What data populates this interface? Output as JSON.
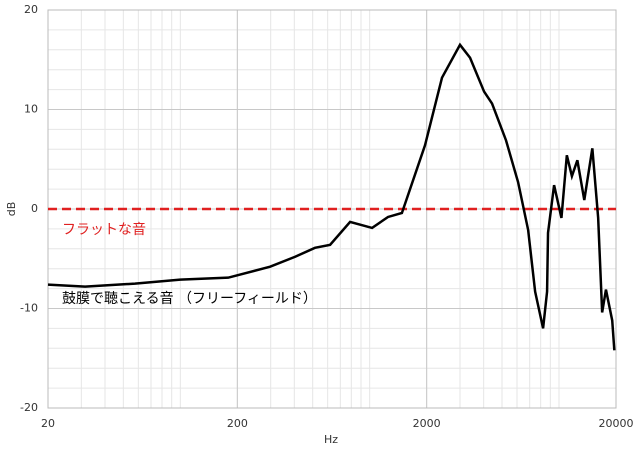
{
  "chart_data": {
    "type": "line",
    "x_label": "Hz",
    "y_label": "dB",
    "xscale": "log",
    "grid": true,
    "xlim": [
      20,
      20000
    ],
    "xticks": [
      20,
      200,
      2000,
      20000
    ],
    "ylim": [
      -20,
      20
    ],
    "yticks": [
      -20,
      -10,
      0,
      10,
      20
    ],
    "series": [
      {
        "name": "フラットな音",
        "color": "#e02020",
        "dashed": true,
        "x": [
          20,
          20000
        ],
        "values": [
          0,
          0
        ]
      },
      {
        "name": "鼓膜で聴こえる音 （フリーフィールド）",
        "color": "#000000",
        "dashed": false,
        "x": [
          20,
          31.4,
          57.6,
          100,
          179,
          298,
          404,
          514,
          618,
          788,
          1030,
          1250,
          1480,
          1960,
          2410,
          3000,
          3390,
          4020,
          4430,
          5250,
          6080,
          6870,
          7480,
          8240,
          8650,
          8750,
          9420,
          10300,
          11000,
          11700,
          12500,
          13600,
          15000,
          16100,
          16900,
          17700,
          19100,
          19600
        ],
        "values": [
          -7.6,
          -7.8,
          -7.5,
          -7.1,
          -6.9,
          -5.8,
          -4.8,
          -3.9,
          -3.6,
          -1.3,
          -1.9,
          -0.8,
          -0.4,
          6.4,
          13.2,
          16.5,
          15.2,
          11.8,
          10.6,
          6.9,
          2.7,
          -2.1,
          -8.3,
          -12.0,
          -8.3,
          -2.4,
          2.4,
          -0.9,
          5.4,
          3.3,
          4.9,
          0.9,
          6.1,
          -0.9,
          -10.4,
          -8.1,
          -11.2,
          -14.2
        ]
      }
    ]
  }
}
